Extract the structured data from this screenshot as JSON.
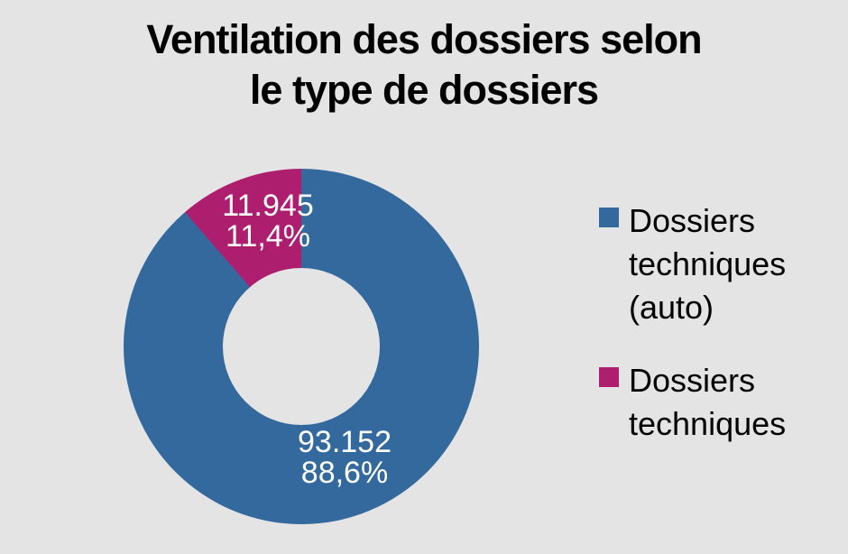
{
  "background_color": "#E4E4E4",
  "chart_data": {
    "type": "pie",
    "subtype": "donut",
    "title": "Ventilation des dossiers selon\nle type de dossiers",
    "categories": [
      "Dossiers techniques (auto)",
      "Dossiers techniques"
    ],
    "values": [
      93152,
      11945
    ],
    "value_labels": [
      "93.152",
      "11.945"
    ],
    "percent_labels": [
      "88,6%",
      "11,4%"
    ],
    "percentages": [
      88.6,
      11.4
    ],
    "colors": [
      "#33699C",
      "#AD1E6F"
    ],
    "slice_labels": [
      "93.152\n88,6%",
      "11.945\n11,4%"
    ],
    "slice_label_text_color": "#FFFFFF",
    "start_angle_deg": 0,
    "direction": "clockwise",
    "inner_radius_ratio": 0.44,
    "legend_position": "right",
    "legend": [
      {
        "label": "Dossiers techniques (auto)",
        "color": "#33699C"
      },
      {
        "label": "Dossiers techniques",
        "color": "#AD1E6F"
      }
    ]
  }
}
